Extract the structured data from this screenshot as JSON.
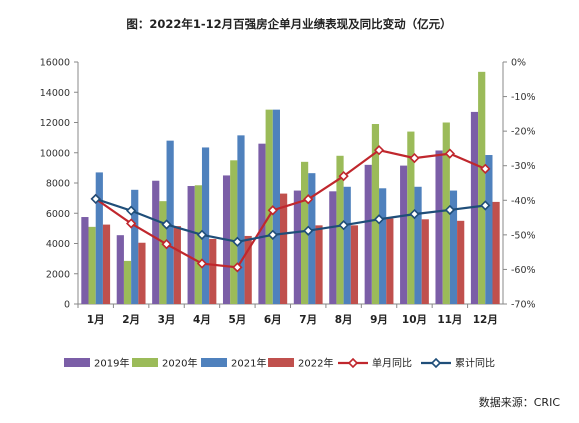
{
  "chart_data": {
    "type": "bar",
    "title": "图：2022年1-12月百强房企单月业绩表现及同比变动（亿元）",
    "categories": [
      "1月",
      "2月",
      "3月",
      "4月",
      "5月",
      "6月",
      "7月",
      "8月",
      "9月",
      "10月",
      "11月",
      "12月"
    ],
    "series": [
      {
        "name": "2019年",
        "type": "bar",
        "axis": "left",
        "color": "#7b5ea7",
        "values": [
          5750,
          4550,
          8150,
          7800,
          8500,
          10600,
          7500,
          7450,
          9200,
          9150,
          10150,
          12700
        ]
      },
      {
        "name": "2020年",
        "type": "bar",
        "axis": "left",
        "color": "#9bbb59",
        "values": [
          5100,
          2850,
          6800,
          7850,
          9500,
          12850,
          9400,
          9800,
          11900,
          11400,
          12000,
          15350
        ]
      },
      {
        "name": "2021年",
        "type": "bar",
        "axis": "left",
        "color": "#4f81bd",
        "values": [
          8700,
          7550,
          10800,
          10350,
          11150,
          12850,
          8650,
          7750,
          7650,
          7750,
          7500,
          9850
        ]
      },
      {
        "name": "2022年",
        "type": "bar",
        "axis": "left",
        "color": "#c0504d",
        "values": [
          5250,
          4050,
          5150,
          4300,
          4500,
          7300,
          5200,
          5200,
          5650,
          5600,
          5500,
          6750
        ]
      },
      {
        "name": "单月同比",
        "type": "line",
        "axis": "right",
        "color": "#c0272d",
        "values": [
          -39.6,
          -46.7,
          -52.7,
          -58.3,
          -59.4,
          -42.9,
          -39.7,
          -33.0,
          -25.5,
          -27.8,
          -26.5,
          -30.9
        ]
      },
      {
        "name": "累计同比",
        "type": "line",
        "axis": "right",
        "color": "#1f4e79",
        "values": [
          -39.6,
          -43.0,
          -47.0,
          -50.0,
          -52.0,
          -50.0,
          -48.8,
          -47.2,
          -45.5,
          -44.0,
          -42.8,
          -41.5
        ]
      }
    ],
    "y_left": {
      "ylim": [
        0,
        16000
      ],
      "ticks": [
        "0",
        "2000",
        "4000",
        "6000",
        "8000",
        "10000",
        "12000",
        "14000",
        "16000"
      ]
    },
    "y_right": {
      "ylim": [
        -70,
        0
      ],
      "ticks": [
        "-70%",
        "-60%",
        "-50%",
        "-40%",
        "-30%",
        "-20%",
        "-10%",
        "0%"
      ]
    },
    "grid": false,
    "legend_position": "bottom"
  },
  "source": "数据来源：CRIC"
}
